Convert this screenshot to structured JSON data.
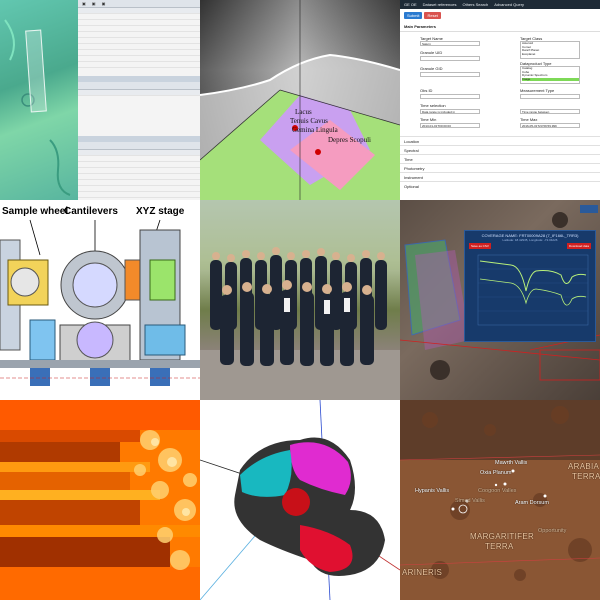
{
  "tile1": {
    "labels": [
      "Lacus",
      "Tenuis Cavus",
      "Gemina Lingula",
      "Depres Scopuli"
    ]
  },
  "tile2": {
    "tabs": [
      "GE OE",
      "Dataset references",
      "Others Search",
      "Advanced Query"
    ],
    "buttons": [
      "Submit",
      "Reset"
    ],
    "section": "Main Parameters",
    "target_name_label": "Target Name",
    "target_name_value": "Saturn",
    "target_class_label": "Target Class",
    "target_class_options": [
      "Asteroid",
      "Comet",
      "Dwarf Planet",
      "Exoplanet",
      "Planet"
    ],
    "granule_uid_label": "Granule UID",
    "granule_gid_label": "Granule GID",
    "dataproduct_label": "Dataproduct Type",
    "dataproduct_options": [
      "Catalog",
      "Cube",
      "Dynamic Spectrum",
      "Image",
      "Map"
    ],
    "obs_id_label": "Obs ID",
    "measurement_label": "Measurement Type",
    "time_selection_label": "Time selection",
    "time_selection_value": "Data range is included in",
    "time_selection_value2": "Time range between",
    "time_min_label": "Time Min",
    "time_min_value": "2013-01-01T00:00:00",
    "time_max_label": "Time Max",
    "time_max_value": "2016-05-31T23:59:59.999",
    "accordion": [
      "Location",
      "Spectral",
      "Time",
      "Photometry",
      "Instrument",
      "Optional"
    ]
  },
  "tile3": {
    "captions": [
      "Sample wheel",
      "Cantilevers",
      "XYZ stage"
    ]
  },
  "tile5": {
    "title": "COVERAGE NAME: FRT00009A28 (7_IF166L_TRR3)",
    "subtitle": "Latitude: 18.42935, Longitude: -72.04226",
    "btn_left": "Save as CSV",
    "btn_right": "Download data"
  },
  "tile8": {
    "labels": [
      "Mawrth Vallis",
      "Oxia Planum",
      "Hypanis Vallis",
      "Simud Vallis",
      "Coogoon Valles",
      "Aram Dorsum",
      "ARABIA",
      "TERRA",
      "MARGARITIFER",
      "TERRA",
      "Opportunity",
      "ARINERIS"
    ]
  },
  "colors": {
    "accent_green": "#7ed957",
    "form_dark": "#1e2a36",
    "popup_blue": "#173a6b",
    "comet_magenta": "#e02bd0",
    "comet_cyan": "#18b8c0",
    "comet_red": "#e01030"
  }
}
